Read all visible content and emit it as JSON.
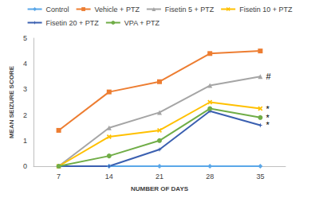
{
  "chart_data": {
    "type": "line",
    "x_label": "NUMBER OF DAYS",
    "y_label": "MEAN SEIZURE SCORE",
    "categories": [
      "7",
      "14",
      "21",
      "28",
      "35"
    ],
    "ylim": [
      0,
      5
    ],
    "yticks": [
      0,
      1,
      2,
      3,
      4,
      5
    ],
    "grid": false,
    "legend": "top",
    "series": [
      {
        "name": "Control",
        "color": "#5aa7e8",
        "marker": "diamond",
        "values": [
          0,
          0,
          0,
          0,
          0
        ]
      },
      {
        "name": "Vehicle + PTZ",
        "color": "#ed7d31",
        "marker": "square",
        "values": [
          1.4,
          2.9,
          3.3,
          4.4,
          4.5
        ]
      },
      {
        "name": "Fisetin 5 + PTZ",
        "color": "#a5a5a5",
        "marker": "triangle",
        "values": [
          0,
          1.5,
          2.1,
          3.15,
          3.5
        ]
      },
      {
        "name": "Fisetin 10 + PTZ",
        "color": "#ffc000",
        "marker": "x",
        "values": [
          0,
          1.15,
          1.4,
          2.5,
          2.25
        ]
      },
      {
        "name": "Fisetin 20 + PTZ",
        "color": "#3a5fb0",
        "marker": "star",
        "values": [
          0,
          0,
          0.65,
          2.15,
          1.6
        ]
      },
      {
        "name": "VPA + PTZ",
        "color": "#70ad47",
        "marker": "circle",
        "values": [
          0,
          0.4,
          1.0,
          2.25,
          1.9
        ]
      }
    ],
    "annotations": [
      {
        "text": "#",
        "series": "Fisetin 5 + PTZ"
      },
      {
        "text": "*",
        "series": "Fisetin 10 + PTZ"
      },
      {
        "text": "*",
        "series": "VPA + PTZ"
      },
      {
        "text": "*",
        "series": "Fisetin 20 + PTZ"
      }
    ]
  }
}
